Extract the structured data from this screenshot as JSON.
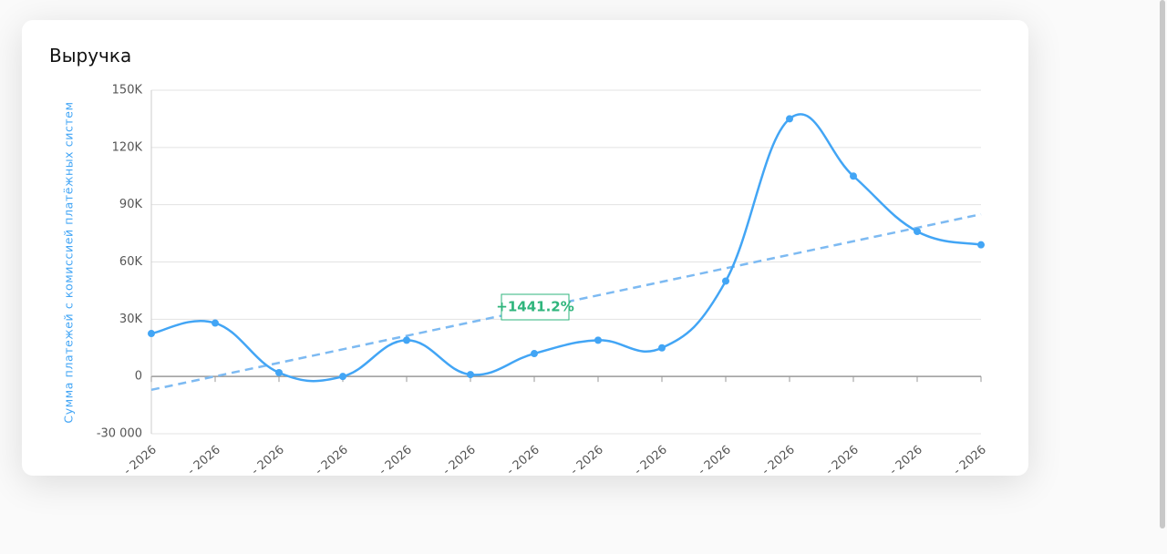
{
  "chart_data": {
    "type": "line",
    "title": "Выручка",
    "y_label": "Сумма платежей с комиссией платёжных систем",
    "categories": [
      "- 2026",
      "- 2026",
      "- 2026",
      "- 2026",
      "- 2026",
      "- 2026",
      "- 2026",
      "- 2026",
      "- 2026",
      "- 2026",
      "- 2026",
      "- 2026",
      "- 2026",
      "- 2026"
    ],
    "series": [
      {
        "color": "#42a5f5",
        "values": [
          22500,
          28000,
          2000,
          0,
          19000,
          1000,
          12000,
          19000,
          15000,
          50000,
          135000,
          105000,
          76000,
          69000
        ]
      }
    ],
    "trend": {
      "start": -7000,
      "end": 85000,
      "color": "#7dbaf2",
      "label": "+1441.2%"
    },
    "ylim": [
      -30000,
      150000
    ],
    "yticks": [
      {
        "value": -30000,
        "label": "-30 000"
      },
      0,
      {
        "value": 30000,
        "label": "30K"
      },
      {
        "value": 60000,
        "label": "60K"
      },
      {
        "value": 90000,
        "label": "90K"
      },
      {
        "value": 120000,
        "label": "120K"
      },
      {
        "value": 150000,
        "label": "150K"
      }
    ],
    "grid": true
  }
}
